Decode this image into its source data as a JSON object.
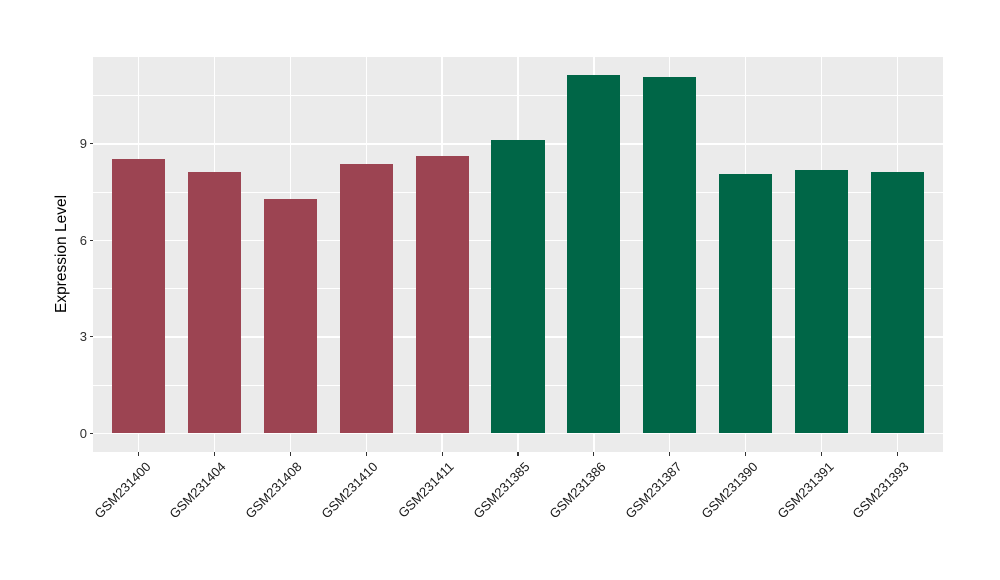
{
  "chart_data": {
    "type": "bar",
    "title": "",
    "ylabel": "Expression Level",
    "xlabel": "",
    "categories": [
      "GSM231400",
      "GSM231404",
      "GSM231408",
      "GSM231410",
      "GSM231411",
      "GSM231385",
      "GSM231386",
      "GSM231387",
      "GSM231390",
      "GSM231391",
      "GSM231393"
    ],
    "values": [
      8.53,
      8.11,
      7.27,
      8.38,
      8.61,
      9.13,
      11.14,
      11.08,
      8.07,
      8.19,
      8.14
    ],
    "bar_colors": [
      "#9C4452",
      "#9C4452",
      "#9C4452",
      "#9C4452",
      "#9C4452",
      "#006647",
      "#006647",
      "#006647",
      "#006647",
      "#006647",
      "#006647"
    ],
    "yticks": [
      0,
      3,
      6,
      9
    ],
    "ytick_labels": [
      "0",
      "3",
      "6",
      "9"
    ],
    "yticks_minor": [
      1.5,
      4.5,
      7.5,
      10.5
    ],
    "ylim": [
      -0.58,
      11.7
    ],
    "grid": true,
    "legend": "none",
    "colors": {
      "panel_background": "#EBEBEB",
      "figure_background": "#FFFFFF",
      "gridline": "#FFFFFF",
      "tick_mark": "#333333",
      "axis_text": "#303030",
      "group_left": "#9C4452",
      "group_right": "#006647"
    },
    "bar_width_fraction": 0.7
  }
}
